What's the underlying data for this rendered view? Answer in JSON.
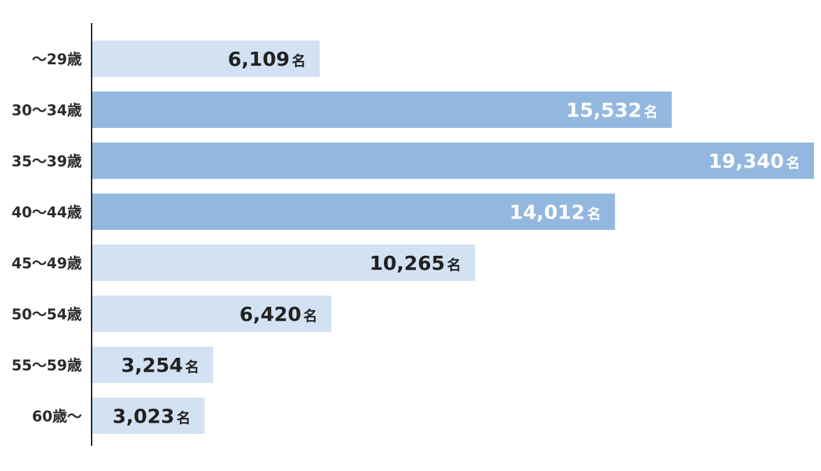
{
  "chart_data": {
    "type": "bar",
    "orientation": "horizontal",
    "categories": [
      "～29歳",
      "30～34歳",
      "35～39歳",
      "40～44歳",
      "45～49歳",
      "50～54歳",
      "55～59歳",
      "60歳～"
    ],
    "values": [
      6109,
      15532,
      19340,
      14012,
      10265,
      6420,
      3254,
      3023
    ],
    "value_labels": [
      "6,109",
      "15,532",
      "19,340",
      "14,012",
      "10,265",
      "6,420",
      "3,254",
      "3,023"
    ],
    "unit": "名",
    "highlighted": [
      false,
      true,
      true,
      true,
      false,
      false,
      false,
      false
    ],
    "colors": {
      "bar": "#d2e2f3",
      "bar_highlight": "#93b8df",
      "label_on_light": "#222222",
      "label_on_highlight": "#ffffff",
      "axis": "#222222"
    },
    "xlim": [
      0,
      19340
    ],
    "title": "",
    "xlabel": "",
    "ylabel": "",
    "grid": false,
    "legend": "none"
  }
}
